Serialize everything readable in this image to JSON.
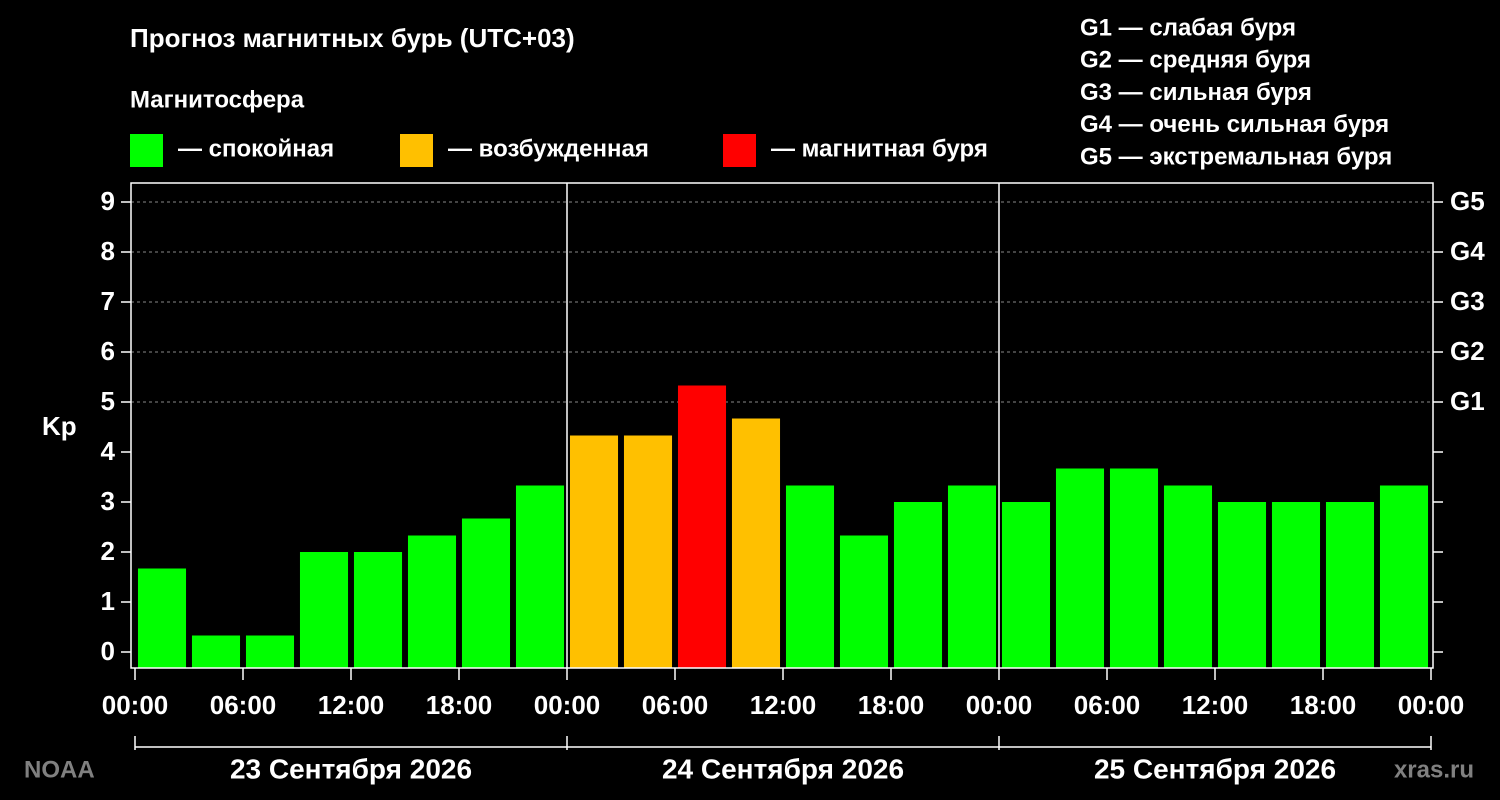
{
  "chart_data": {
    "type": "bar",
    "title": "Прогноз магнитных бурь (UTC+03)",
    "subtitle": "Магнитосфера",
    "ylabel": "Kp",
    "legend": [
      {
        "label": "— спокойная",
        "color": "#00ff00"
      },
      {
        "label": "— возбужденная",
        "color": "#ffc000"
      },
      {
        "label": "— магнитная буря",
        "color": "#ff0000"
      }
    ],
    "g_scale": [
      "G1 — слабая буря",
      "G2 — средняя буря",
      "G3 — сильная буря",
      "G4 — очень сильная буря",
      "G5 — экстремальная буря"
    ],
    "x": [
      1.5,
      4.5,
      7.5,
      10.5,
      13.5,
      16.5,
      19.5,
      22.5,
      25.5,
      28.5,
      31.5,
      34.5,
      37.5,
      40.5,
      43.5,
      46.5,
      49.5,
      52.5,
      55.5,
      58.5,
      61.5,
      64.5,
      67.5,
      70.5
    ],
    "values": [
      1.67,
      0.33,
      0.33,
      2,
      2,
      2.33,
      2.67,
      3.33,
      4.33,
      4.33,
      5.33,
      4.67,
      3.33,
      2.33,
      3,
      3.33,
      3,
      3.67,
      3.67,
      3.33,
      3,
      3,
      3,
      3.33
    ],
    "colors": [
      "#00ff00",
      "#00ff00",
      "#00ff00",
      "#00ff00",
      "#00ff00",
      "#00ff00",
      "#00ff00",
      "#00ff00",
      "#ffc000",
      "#ffc000",
      "#ff0000",
      "#ffc000",
      "#00ff00",
      "#00ff00",
      "#00ff00",
      "#00ff00",
      "#00ff00",
      "#00ff00",
      "#00ff00",
      "#00ff00",
      "#00ff00",
      "#00ff00",
      "#00ff00",
      "#00ff00"
    ],
    "xlim": [
      0,
      72
    ],
    "xticks": [
      {
        "value": 0,
        "label": "00:00"
      },
      {
        "value": 6,
        "label": "06:00"
      },
      {
        "value": 12,
        "label": "12:00"
      },
      {
        "value": 18,
        "label": "18:00"
      },
      {
        "value": 24,
        "label": "00:00"
      },
      {
        "value": 30,
        "label": "06:00"
      },
      {
        "value": 36,
        "label": "12:00"
      },
      {
        "value": 42,
        "label": "18:00"
      },
      {
        "value": 48,
        "label": "00:00"
      },
      {
        "value": 54,
        "label": "06:00"
      },
      {
        "value": 60,
        "label": "12:00"
      },
      {
        "value": 66,
        "label": "18:00"
      },
      {
        "value": 72,
        "label": "00:00"
      }
    ],
    "day_labels": [
      "23 Сентября 2026",
      "24 Сентября 2026",
      "25 Сентября 2026"
    ],
    "ylim": [
      -0.32,
      9.38
    ],
    "yticks": [
      0,
      1,
      2,
      3,
      4,
      5,
      6,
      7,
      8,
      9
    ],
    "y2ticks": [
      {
        "value": 5,
        "label": "G1"
      },
      {
        "value": 6,
        "label": "G2"
      },
      {
        "value": 7,
        "label": "G3"
      },
      {
        "value": 8,
        "label": "G4"
      },
      {
        "value": 9,
        "label": "G5"
      }
    ],
    "grid": true,
    "watermarks": [
      "NOAA",
      "xras.ru"
    ]
  }
}
